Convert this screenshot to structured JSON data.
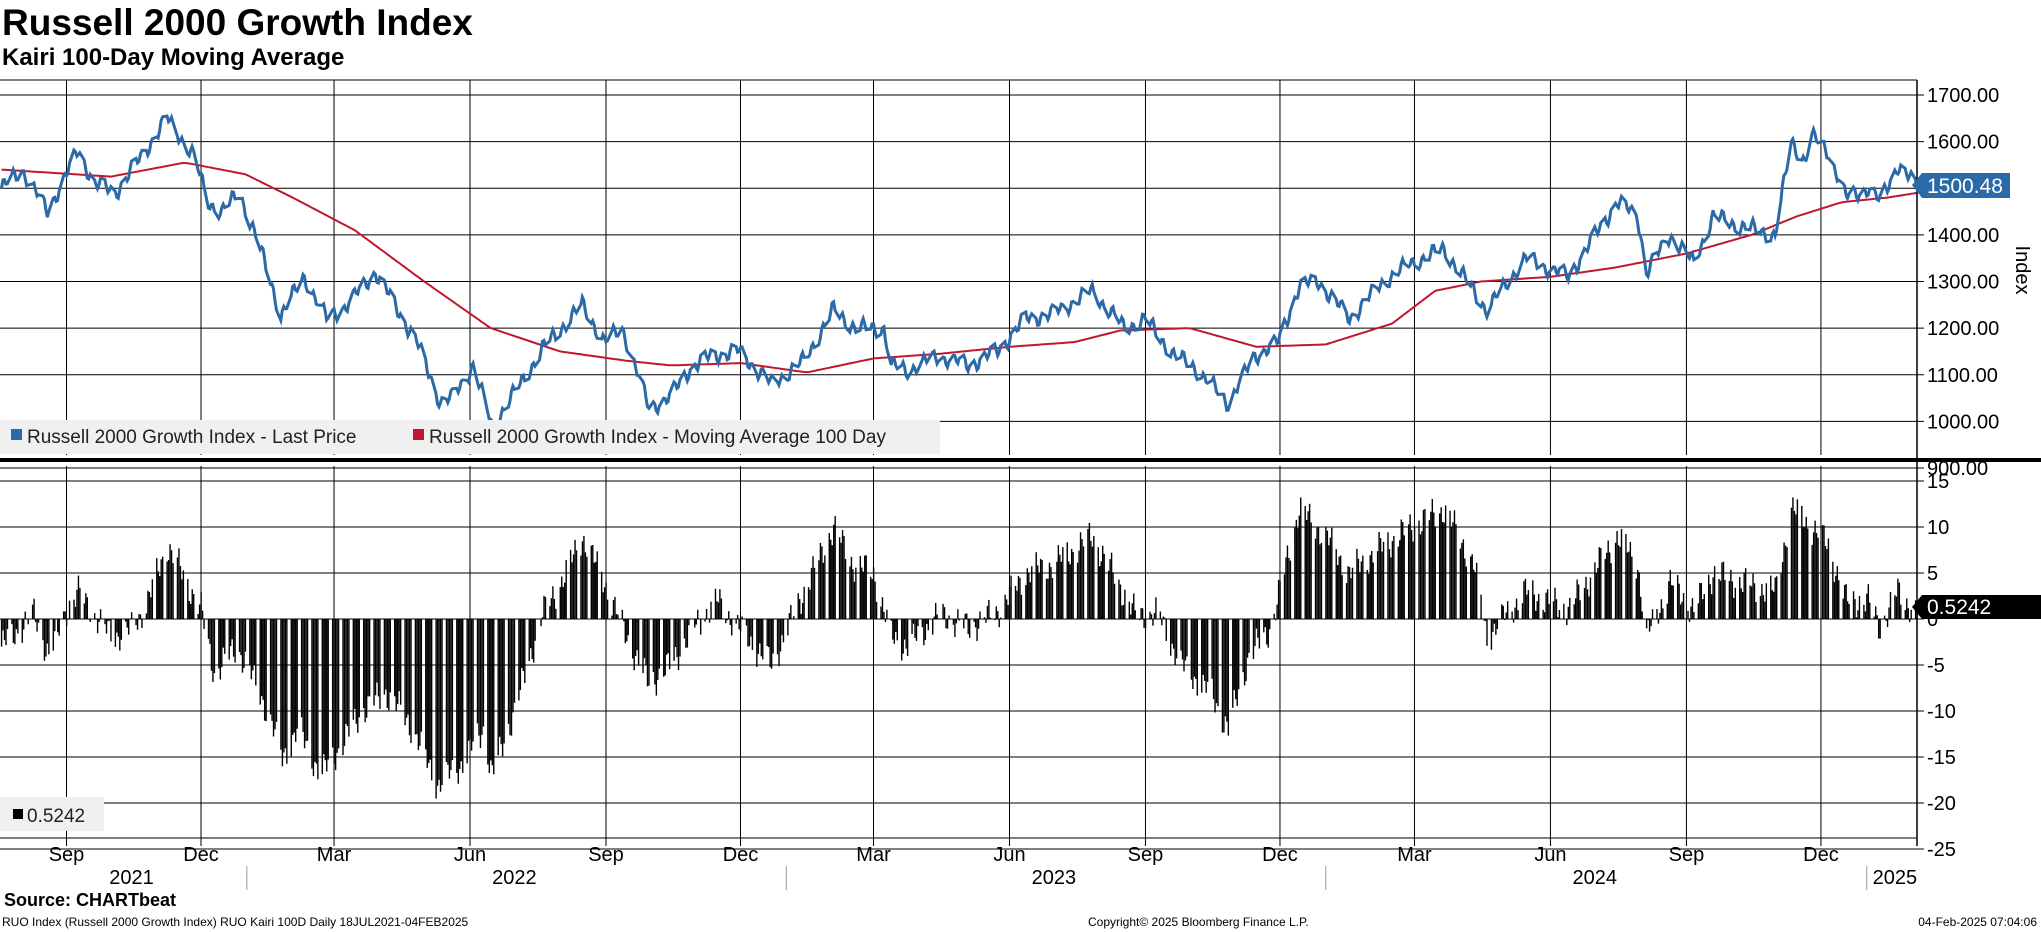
{
  "title": "Russell 2000 Growth Index",
  "subtitle": "Kairi 100-Day Moving Average",
  "source": "Source: CHARTbeat",
  "footer": {
    "left": "RUO Index (Russell 2000 Growth Index) RUO Kairi 100D  Daily 18JUL2021-04FEB2025",
    "center": "Copyright© 2025 Bloomberg Finance L.P.",
    "right": "04-Feb-2025 07:04:06"
  },
  "colors": {
    "price": "#2b6aa6",
    "ma": "#c0172e",
    "kairi": "#000000",
    "grid": "#000000"
  },
  "chart_data": [
    {
      "type": "line",
      "x_range": [
        "2021-07-18",
        "2025-02-04"
      ],
      "ylabel": "Index",
      "ylim": [
        900,
        1700
      ],
      "yticks": [
        "1700.00",
        "1600.00",
        "1500.00",
        "1400.00",
        "1300.00",
        "1200.00",
        "1100.00",
        "1000.00",
        "900.00"
      ],
      "last_value_label": "1500.48",
      "grid": true,
      "legend_position": "bottom-left",
      "series": [
        {
          "name": "Russell 2000 Growth Index - Last Price",
          "color": "#2b6aa6",
          "points": [
            [
              "2021-07-19",
              1500
            ],
            [
              "2021-08-02",
              1540
            ],
            [
              "2021-08-19",
              1450
            ],
            [
              "2021-09-01",
              1530
            ],
            [
              "2021-09-09",
              1580
            ],
            [
              "2021-09-20",
              1510
            ],
            [
              "2021-10-04",
              1490
            ],
            [
              "2021-10-20",
              1560
            ],
            [
              "2021-11-08",
              1650
            ],
            [
              "2021-11-15",
              1620
            ],
            [
              "2021-11-26",
              1570
            ],
            [
              "2021-12-06",
              1470
            ],
            [
              "2021-12-15",
              1450
            ],
            [
              "2021-12-27",
              1490
            ],
            [
              "2022-01-07",
              1400
            ],
            [
              "2022-01-24",
              1230
            ],
            [
              "2022-02-09",
              1310
            ],
            [
              "2022-02-24",
              1220
            ],
            [
              "2022-03-10",
              1250
            ],
            [
              "2022-03-29",
              1320
            ],
            [
              "2022-04-11",
              1250
            ],
            [
              "2022-04-26",
              1170
            ],
            [
              "2022-05-12",
              1040
            ],
            [
              "2022-05-20",
              1050
            ],
            [
              "2022-06-03",
              1120
            ],
            [
              "2022-06-16",
              990
            ],
            [
              "2022-07-05",
              1080
            ],
            [
              "2022-07-21",
              1160
            ],
            [
              "2022-08-16",
              1250
            ],
            [
              "2022-08-31",
              1170
            ],
            [
              "2022-09-12",
              1200
            ],
            [
              "2022-09-30",
              1030
            ],
            [
              "2022-10-14",
              1050
            ],
            [
              "2022-10-27",
              1110
            ],
            [
              "2022-11-11",
              1140
            ],
            [
              "2022-11-30",
              1150
            ],
            [
              "2022-12-22",
              1080
            ],
            [
              "2023-01-13",
              1130
            ],
            [
              "2023-02-02",
              1240
            ],
            [
              "2023-02-17",
              1200
            ],
            [
              "2023-03-08",
              1200
            ],
            [
              "2023-03-13",
              1120
            ],
            [
              "2023-03-24",
              1110
            ],
            [
              "2023-04-14",
              1140
            ],
            [
              "2023-05-04",
              1120
            ],
            [
              "2023-05-24",
              1150
            ],
            [
              "2023-06-12",
              1220
            ],
            [
              "2023-06-30",
              1230
            ],
            [
              "2023-07-27",
              1280
            ],
            [
              "2023-08-18",
              1200
            ],
            [
              "2023-09-01",
              1220
            ],
            [
              "2023-09-21",
              1140
            ],
            [
              "2023-10-03",
              1120
            ],
            [
              "2023-10-27",
              1040
            ],
            [
              "2023-11-14",
              1140
            ],
            [
              "2023-11-30",
              1170
            ],
            [
              "2023-12-14",
              1290
            ],
            [
              "2023-12-27",
              1300
            ],
            [
              "2024-01-17",
              1220
            ],
            [
              "2024-02-09",
              1300
            ],
            [
              "2024-02-28",
              1340
            ],
            [
              "2024-03-21",
              1370
            ],
            [
              "2024-04-19",
              1240
            ],
            [
              "2024-05-15",
              1350
            ],
            [
              "2024-06-13",
              1310
            ],
            [
              "2024-07-16",
              1470
            ],
            [
              "2024-07-30",
              1440
            ],
            [
              "2024-08-05",
              1320
            ],
            [
              "2024-08-21",
              1400
            ],
            [
              "2024-09-06",
              1340
            ],
            [
              "2024-09-19",
              1440
            ],
            [
              "2024-10-07",
              1420
            ],
            [
              "2024-10-31",
              1400
            ],
            [
              "2024-11-11",
              1600
            ],
            [
              "2024-11-20",
              1560
            ],
            [
              "2024-11-25",
              1610
            ],
            [
              "2024-12-06",
              1580
            ],
            [
              "2024-12-18",
              1480
            ],
            [
              "2025-01-02",
              1500
            ],
            [
              "2025-01-10",
              1470
            ],
            [
              "2025-01-22",
              1550
            ],
            [
              "2025-02-04",
              1500.48
            ]
          ]
        },
        {
          "name": "Russell 2000 Growth Index - Moving Average 100 Day",
          "color": "#c0172e",
          "points": [
            [
              "2021-07-19",
              1540
            ],
            [
              "2021-10-01",
              1525
            ],
            [
              "2021-11-20",
              1555
            ],
            [
              "2021-12-31",
              1530
            ],
            [
              "2022-02-01",
              1480
            ],
            [
              "2022-03-15",
              1410
            ],
            [
              "2022-05-01",
              1300
            ],
            [
              "2022-06-15",
              1200
            ],
            [
              "2022-08-01",
              1150
            ],
            [
              "2022-09-15",
              1130
            ],
            [
              "2022-10-15",
              1120
            ],
            [
              "2022-12-01",
              1125
            ],
            [
              "2023-01-15",
              1105
            ],
            [
              "2023-03-01",
              1135
            ],
            [
              "2023-04-15",
              1145
            ],
            [
              "2023-06-01",
              1160
            ],
            [
              "2023-07-15",
              1170
            ],
            [
              "2023-08-15",
              1195
            ],
            [
              "2023-10-01",
              1200
            ],
            [
              "2023-11-15",
              1160
            ],
            [
              "2024-01-01",
              1165
            ],
            [
              "2024-02-15",
              1210
            ],
            [
              "2024-03-15",
              1280
            ],
            [
              "2024-04-15",
              1300
            ],
            [
              "2024-06-01",
              1310
            ],
            [
              "2024-07-15",
              1330
            ],
            [
              "2024-09-01",
              1360
            ],
            [
              "2024-10-15",
              1400
            ],
            [
              "2024-11-15",
              1440
            ],
            [
              "2024-12-15",
              1470
            ],
            [
              "2025-01-15",
              1480
            ],
            [
              "2025-02-04",
              1490
            ]
          ]
        }
      ]
    },
    {
      "type": "bar",
      "x_range": [
        "2021-07-18",
        "2025-02-04"
      ],
      "ylim": [
        -25,
        15
      ],
      "yticks": [
        "15",
        "10",
        "5",
        "0",
        "-5",
        "-10",
        "-15",
        "-20",
        "-25"
      ],
      "last_value_label": "0.5242",
      "legend_value": "0.5242",
      "legend_position": "bottom-left",
      "grid": true,
      "series": [
        {
          "name": "RUO Kairi 100D",
          "color": "#000000",
          "points": [
            [
              "2021-07-19",
              -3
            ],
            [
              "2021-08-10",
              0.5
            ],
            [
              "2021-08-20",
              -4
            ],
            [
              "2021-09-01",
              1
            ],
            [
              "2021-09-10",
              3
            ],
            [
              "2021-09-25",
              -1
            ],
            [
              "2021-10-10",
              -2
            ],
            [
              "2021-10-25",
              1.5
            ],
            [
              "2021-11-08",
              8
            ],
            [
              "2021-11-15",
              6
            ],
            [
              "2021-12-01",
              1
            ],
            [
              "2021-12-10",
              -6
            ],
            [
              "2021-12-25",
              -3
            ],
            [
              "2022-01-10",
              -8
            ],
            [
              "2022-01-25",
              -15
            ],
            [
              "2022-02-05",
              -12
            ],
            [
              "2022-02-20",
              -17
            ],
            [
              "2022-03-05",
              -14
            ],
            [
              "2022-03-20",
              -10
            ],
            [
              "2022-04-05",
              -8
            ],
            [
              "2022-04-20",
              -11
            ],
            [
              "2022-05-10",
              -18
            ],
            [
              "2022-05-25",
              -16
            ],
            [
              "2022-06-10",
              -12
            ],
            [
              "2022-06-16",
              -17
            ],
            [
              "2022-07-01",
              -10
            ],
            [
              "2022-07-20",
              0.5
            ],
            [
              "2022-08-05",
              5
            ],
            [
              "2022-08-16",
              9
            ],
            [
              "2022-08-31",
              4
            ],
            [
              "2022-09-15",
              -2
            ],
            [
              "2022-09-30",
              -7
            ],
            [
              "2022-10-15",
              -5
            ],
            [
              "2022-10-30",
              -1
            ],
            [
              "2022-11-15",
              2
            ],
            [
              "2022-12-05",
              -2
            ],
            [
              "2022-12-22",
              -5
            ],
            [
              "2023-01-10",
              2
            ],
            [
              "2023-02-02",
              10
            ],
            [
              "2023-02-15",
              6
            ],
            [
              "2023-03-01",
              5
            ],
            [
              "2023-03-13",
              -2
            ],
            [
              "2023-03-24",
              -3
            ],
            [
              "2023-04-15",
              0.5
            ],
            [
              "2023-05-05",
              -1
            ],
            [
              "2023-05-25",
              1
            ],
            [
              "2023-06-12",
              5
            ],
            [
              "2023-07-01",
              6
            ],
            [
              "2023-07-27",
              9
            ],
            [
              "2023-08-10",
              5
            ],
            [
              "2023-08-25",
              0.5
            ],
            [
              "2023-09-10",
              0.5
            ],
            [
              "2023-09-25",
              -5
            ],
            [
              "2023-10-15",
              -8
            ],
            [
              "2023-10-27",
              -12
            ],
            [
              "2023-11-10",
              -4
            ],
            [
              "2023-11-25",
              -1
            ],
            [
              "2023-12-05",
              6
            ],
            [
              "2023-12-14",
              12
            ],
            [
              "2024-01-01",
              9
            ],
            [
              "2024-01-17",
              5
            ],
            [
              "2024-02-09",
              8
            ],
            [
              "2024-02-28",
              10
            ],
            [
              "2024-03-21",
              12
            ],
            [
              "2024-04-10",
              6
            ],
            [
              "2024-04-19",
              -2
            ],
            [
              "2024-05-15",
              3
            ],
            [
              "2024-06-13",
              1
            ],
            [
              "2024-07-16",
              9
            ],
            [
              "2024-07-30",
              6
            ],
            [
              "2024-08-05",
              -2
            ],
            [
              "2024-08-21",
              4
            ],
            [
              "2024-09-06",
              1
            ],
            [
              "2024-09-19",
              5
            ],
            [
              "2024-10-07",
              4
            ],
            [
              "2024-10-31",
              3
            ],
            [
              "2024-11-11",
              12
            ],
            [
              "2024-11-25",
              10
            ],
            [
              "2024-12-06",
              8
            ],
            [
              "2024-12-18",
              2
            ],
            [
              "2025-01-02",
              2
            ],
            [
              "2025-01-10",
              -1
            ],
            [
              "2025-01-22",
              3
            ],
            [
              "2025-02-04",
              0.5242
            ]
          ]
        }
      ]
    }
  ],
  "x_axis": {
    "month_ticks": [
      [
        "2021-09-01",
        "Sep"
      ],
      [
        "2021-12-01",
        "Dec"
      ],
      [
        "2022-03-01",
        "Mar"
      ],
      [
        "2022-06-01",
        "Jun"
      ],
      [
        "2022-09-01",
        "Sep"
      ],
      [
        "2022-12-01",
        "Dec"
      ],
      [
        "2023-03-01",
        "Mar"
      ],
      [
        "2023-06-01",
        "Jun"
      ],
      [
        "2023-09-01",
        "Sep"
      ],
      [
        "2023-12-01",
        "Dec"
      ],
      [
        "2024-03-01",
        "Mar"
      ],
      [
        "2024-06-01",
        "Jun"
      ],
      [
        "2024-09-01",
        "Sep"
      ],
      [
        "2024-12-01",
        "Dec"
      ]
    ],
    "year_labels": [
      [
        "2021-10-15",
        "2021"
      ],
      [
        "2022-07-01",
        "2022"
      ],
      [
        "2023-07-01",
        "2023"
      ],
      [
        "2024-07-01",
        "2024"
      ],
      [
        "2025-01-20",
        "2025"
      ]
    ],
    "year_boundaries": [
      "2022-01-01",
      "2023-01-01",
      "2024-01-01",
      "2025-01-01"
    ]
  }
}
